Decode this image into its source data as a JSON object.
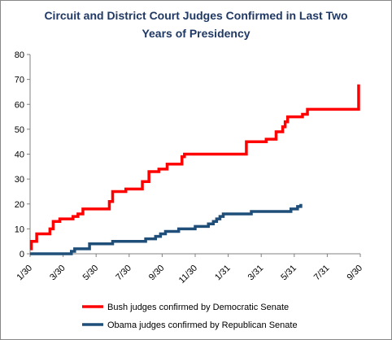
{
  "chart_data": {
    "type": "line",
    "title_lines": [
      "Circuit and District Court Judges Confirmed in Last Two",
      "Years of Presidency"
    ],
    "ylim": [
      0,
      80
    ],
    "yticks": [
      0,
      10,
      20,
      30,
      40,
      50,
      60,
      70,
      80
    ],
    "xticks": [
      "1/30",
      "3/30",
      "5/30",
      "7/30",
      "9/30",
      "11/30",
      "1/31",
      "3/31",
      "5/31",
      "7/31",
      "9/30"
    ],
    "xlim": [
      0,
      20
    ],
    "grid": false,
    "legend_position": "bottom",
    "series": [
      {
        "name": "Bush judges confirmed by Democratic Senate",
        "color": "#ff0000",
        "step_points": [
          [
            0.0,
            2
          ],
          [
            0.08,
            5
          ],
          [
            0.4,
            8
          ],
          [
            1.2,
            10
          ],
          [
            1.4,
            13
          ],
          [
            1.8,
            14
          ],
          [
            2.6,
            15
          ],
          [
            2.9,
            16
          ],
          [
            3.2,
            18
          ],
          [
            4.8,
            21
          ],
          [
            5.0,
            25
          ],
          [
            5.8,
            26
          ],
          [
            6.8,
            29
          ],
          [
            7.2,
            33
          ],
          [
            7.8,
            34
          ],
          [
            8.3,
            36
          ],
          [
            9.2,
            39
          ],
          [
            9.35,
            40
          ],
          [
            13.1,
            45
          ],
          [
            14.3,
            46
          ],
          [
            14.9,
            49
          ],
          [
            15.3,
            51
          ],
          [
            15.45,
            53
          ],
          [
            15.6,
            55
          ],
          [
            16.5,
            56
          ],
          [
            16.8,
            58
          ],
          [
            19.9,
            68
          ]
        ],
        "end_x": 19.9
      },
      {
        "name": "Obama judges confirmed by Republican Senate",
        "color": "#1f4e79",
        "step_points": [
          [
            0.0,
            0
          ],
          [
            2.5,
            1
          ],
          [
            2.7,
            2
          ],
          [
            3.6,
            4
          ],
          [
            5.0,
            5
          ],
          [
            7.0,
            6
          ],
          [
            7.6,
            7
          ],
          [
            7.9,
            8
          ],
          [
            8.2,
            9
          ],
          [
            9.0,
            10
          ],
          [
            10.0,
            11
          ],
          [
            10.8,
            12
          ],
          [
            11.1,
            13
          ],
          [
            11.3,
            14
          ],
          [
            11.5,
            15
          ],
          [
            11.7,
            16
          ],
          [
            13.4,
            17
          ],
          [
            15.8,
            18
          ],
          [
            16.2,
            19
          ],
          [
            16.4,
            20
          ]
        ],
        "end_x": 16.4
      }
    ]
  }
}
